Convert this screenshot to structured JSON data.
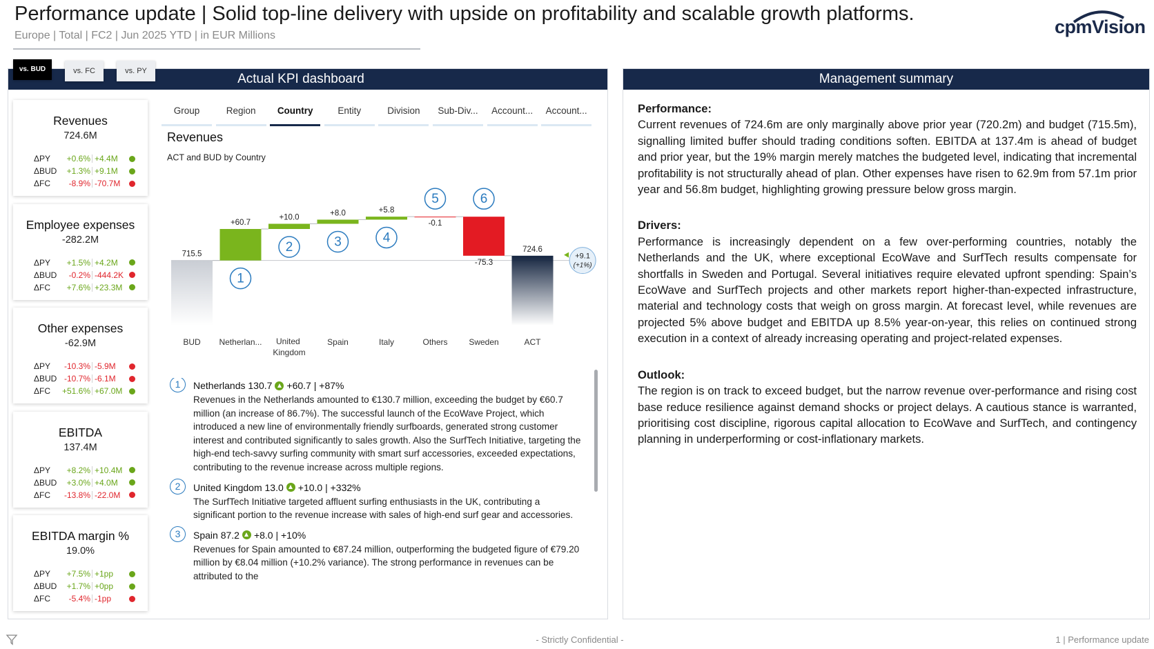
{
  "header": {
    "title": "Performance update | Solid top-line delivery with upside on profitability and scalable growth platforms.",
    "subtitle": "Europe | Total | FC2 | Jun 2025 YTD | in EUR Millions",
    "logo": "cpmVision"
  },
  "comparison_tabs": {
    "items": [
      "vs. BUD",
      "vs. FC",
      "vs. PY"
    ],
    "active": 0
  },
  "dashboard": {
    "title": "Actual KPI dashboard"
  },
  "kpi_cards": [
    {
      "title": "Revenues",
      "value": "724.6M",
      "rows": [
        {
          "label": "ΔPY",
          "pct": "+0.6%",
          "abs": "+4.4M",
          "color": "#6aa61a"
        },
        {
          "label": "ΔBUD",
          "pct": "+1.3%",
          "abs": "+9.1M",
          "color": "#6aa61a"
        },
        {
          "label": "ΔFC",
          "pct": "-8.9%",
          "abs": "-70.7M",
          "color": "#e0262d"
        }
      ]
    },
    {
      "title": "Employee expenses",
      "value": "-282.2M",
      "rows": [
        {
          "label": "ΔPY",
          "pct": "+1.5%",
          "abs": "+4.2M",
          "color": "#6aa61a"
        },
        {
          "label": "ΔBUD",
          "pct": "-0.2%",
          "abs": "-444.2K",
          "color": "#e0262d"
        },
        {
          "label": "ΔFC",
          "pct": "+7.6%",
          "abs": "+23.3M",
          "color": "#6aa61a"
        }
      ]
    },
    {
      "title": "Other expenses",
      "value": "-62.9M",
      "rows": [
        {
          "label": "ΔPY",
          "pct": "-10.3%",
          "abs": "-5.9M",
          "color": "#e0262d"
        },
        {
          "label": "ΔBUD",
          "pct": "-10.7%",
          "abs": "-6.1M",
          "color": "#e0262d"
        },
        {
          "label": "ΔFC",
          "pct": "+51.6%",
          "abs": "+67.0M",
          "color": "#6aa61a"
        }
      ]
    },
    {
      "title": "EBITDA",
      "value": "137.4M",
      "rows": [
        {
          "label": "ΔPY",
          "pct": "+8.2%",
          "abs": "+10.4M",
          "color": "#6aa61a"
        },
        {
          "label": "ΔBUD",
          "pct": "+3.0%",
          "abs": "+4.0M",
          "color": "#6aa61a"
        },
        {
          "label": "ΔFC",
          "pct": "-13.8%",
          "abs": "-22.0M",
          "color": "#e0262d"
        }
      ]
    },
    {
      "title": "EBITDA margin %",
      "value": "19.0%",
      "rows": [
        {
          "label": "ΔPY",
          "pct": "+7.5%",
          "abs": "+1pp",
          "color": "#6aa61a"
        },
        {
          "label": "ΔBUD",
          "pct": "+1.7%",
          "abs": "+0pp",
          "color": "#6aa61a"
        },
        {
          "label": "ΔFC",
          "pct": "-5.4%",
          "abs": "-1pp",
          "color": "#e0262d"
        }
      ]
    }
  ],
  "nav_tabs": {
    "items": [
      "Group",
      "Region",
      "Country",
      "Entity",
      "Division",
      "Sub-Div...",
      "Account...",
      "Account..."
    ],
    "active": 2
  },
  "chart_data": {
    "type": "waterfall",
    "title": "Revenues",
    "subtitle": "ACT and BUD by Country",
    "categories": [
      "BUD",
      "Netherlan...",
      "United Kingdom",
      "Spain",
      "Italy",
      "Others",
      "Sweden",
      "ACT"
    ],
    "values": [
      715.5,
      60.7,
      10.0,
      8.0,
      5.8,
      -0.1,
      -75.3,
      724.6
    ],
    "value_labels": [
      "715.5",
      "+60.7",
      "+10.0",
      "+8.0",
      "+5.8",
      "-0.1",
      "-75.3",
      "724.6"
    ],
    "colors": {
      "start_total": "#c9cdd4",
      "increase": "#7ab51d",
      "decrease": "#e31b23",
      "end_total": "#152540"
    },
    "markers": [
      1,
      2,
      3,
      4,
      5,
      6
    ],
    "variance": {
      "label": "+9.1",
      "pct": "(+1%)"
    },
    "ylim": [
      590,
      860
    ]
  },
  "commentary": [
    {
      "number": 1,
      "heading": "Netherlands 130.7",
      "variance": "+60.7 | +87%",
      "color": "#6aa61a",
      "text": "Revenues in the Netherlands amounted to €130.7 million, exceeding the budget by €60.7 million (an increase of 86.7%). The successful launch of the EcoWave Project, which introduced a new line of environmentally friendly surfboards, generated strong customer interest and contributed significantly to sales growth. Also the SurfTech Initiative, targeting the high-end tech-savvy surfing community with smart surf accessories, exceeded expectations, contributing to the revenue increase across multiple regions."
    },
    {
      "number": 2,
      "heading": "United Kingdom 13.0",
      "variance": "+10.0 | +332%",
      "color": "#6aa61a",
      "text": "The SurfTech Initiative targeted affluent surfing enthusiasts in the UK, contributing a significant portion to the revenue increase with sales of high-end surf gear and accessories."
    },
    {
      "number": 3,
      "heading": "Spain 87.2",
      "variance": "+8.0 | +10%",
      "color": "#6aa61a",
      "text": "Revenues for Spain amounted to €87.24 million, outperforming the budgeted figure of €79.20 million by €8.04 million (+10.2% variance). The strong performance in revenues can be attributed to the"
    }
  ],
  "summary": {
    "title": "Management summary",
    "sections": [
      {
        "heading": "Performance:",
        "text": "Current revenues of 724.6m are only marginally above prior year (720.2m) and budget (715.5m), signalling limited buffer should trading conditions soften. EBITDA at 137.4m is ahead of budget and prior year, but the 19% margin merely matches the budgeted level, indicating that incremental profitability is not structurally ahead of plan. Other expenses have risen to 62.9m from 57.1m prior year and 56.8m budget, highlighting growing pressure below gross margin."
      },
      {
        "heading": "Drivers:",
        "text": "Performance is increasingly dependent on a few over-performing countries, notably the Netherlands and the UK, where exceptional EcoWave and SurfTech results compensate for shortfalls in Sweden and Portugal. Several initiatives require elevated upfront spending: Spain’s EcoWave and SurfTech projects and other markets report higher-than-expected infrastructure, material and technology costs that weigh on gross margin. At forecast level, while revenues are projected 5% above budget and EBITDA up 8.5% year-on-year, this relies on continued strong execution in a context of already increasing operating and project-related expenses."
      },
      {
        "heading": "Outlook:",
        "text": "The region is on track to exceed budget, but the narrow revenue over-performance and rising cost base reduce resilience against demand shocks or project delays. A cautious stance is warranted, prioritising cost discipline, rigorous capital allocation to EcoWave and SurfTech, and contingency planning in underperforming or cost-inflationary markets."
      }
    ]
  },
  "footer": {
    "confidential": "- Strictly Confidential -",
    "page": "1 | Performance update"
  }
}
